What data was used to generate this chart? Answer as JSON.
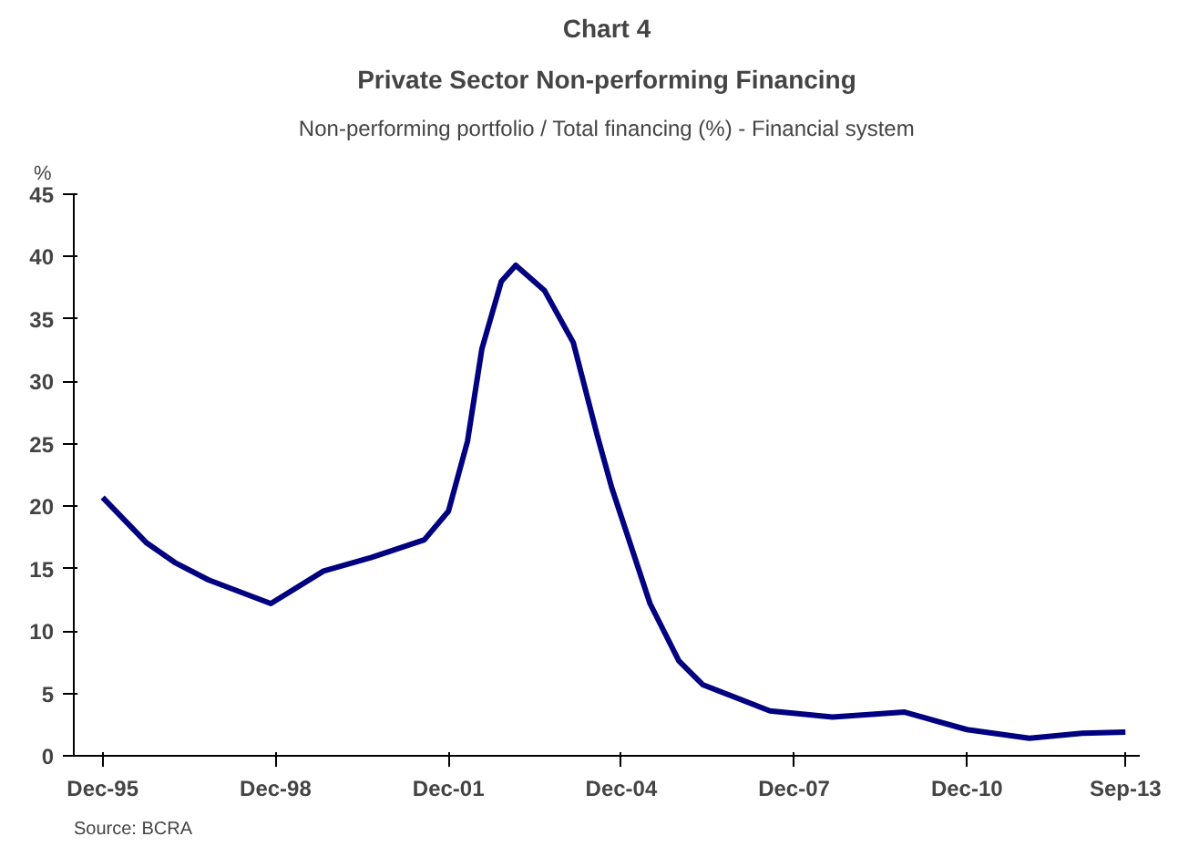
{
  "chart_data": {
    "type": "line",
    "title": "Chart 4",
    "subtitle": "Private Sector Non-performing Financing",
    "xlabel": "Non-performing portfolio / Total financing (%) - Financial system",
    "ylabel": "%",
    "annotations": [
      "Source: BCRA"
    ],
    "x": [
      "1995-12",
      "1996-09",
      "1997-03",
      "1997-10",
      "1998-11",
      "1999-10",
      "2000-08",
      "2001-07",
      "2001-12",
      "2002-04",
      "2002-07",
      "2002-11",
      "2003-02",
      "2003-08",
      "2004-02",
      "2004-07",
      "2004-10",
      "2005-06",
      "2005-12",
      "2006-05",
      "2007-07",
      "2008-08",
      "2009-11",
      "2010-12",
      "2012-01",
      "2012-12",
      "2013-09"
    ],
    "series": [
      {
        "color": "#000080",
        "values": [
          20.7,
          17.1,
          15.5,
          14.1,
          12.2,
          14.8,
          15.9,
          17.3,
          19.6,
          25.2,
          32.6,
          38.0,
          39.3,
          37.3,
          33.1,
          25.7,
          21.5,
          12.2,
          7.6,
          5.7,
          3.6,
          3.1,
          3.5,
          2.1,
          1.4,
          1.8,
          1.9
        ]
      }
    ],
    "xlim": [
      "1995-06",
      "2013-12"
    ],
    "xticks": [
      {
        "value": "1995-12",
        "label": "Dec-95"
      },
      {
        "value": "1998-12",
        "label": "Dec-98"
      },
      {
        "value": "2001-12",
        "label": "Dec-01"
      },
      {
        "value": "2004-12",
        "label": "Dec-04"
      },
      {
        "value": "2007-12",
        "label": "Dec-07"
      },
      {
        "value": "2010-12",
        "label": "Dec-10"
      },
      {
        "value": "2013-09",
        "label": "Sep-13"
      }
    ],
    "ylim": [
      0,
      45
    ],
    "yticks": [
      0,
      5,
      10,
      15,
      20,
      25,
      30,
      35,
      40,
      45
    ],
    "grid": false,
    "marker": "none",
    "line_style": "solid"
  }
}
